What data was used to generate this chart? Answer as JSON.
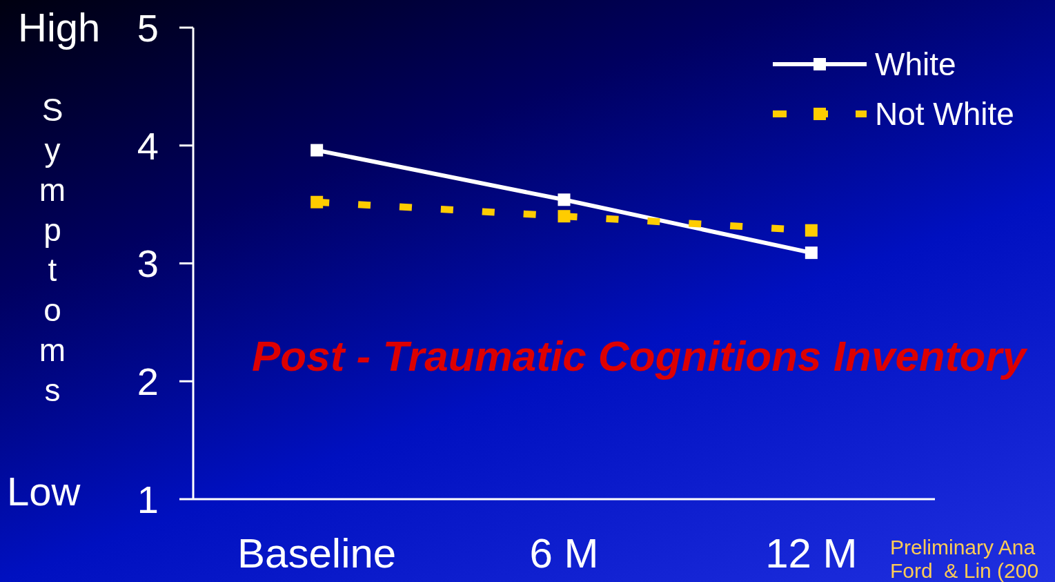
{
  "chart_data": {
    "type": "line",
    "title": "Post - Traumatic Cognitions Inventory",
    "ylabel": "Symptoms",
    "categories": [
      "Baseline",
      "6 M",
      "12 M"
    ],
    "series": [
      {
        "name": "White",
        "color": "#ffffff",
        "values": [
          3.96,
          3.54,
          3.09
        ],
        "line_style": "solid"
      },
      {
        "name": "Not White",
        "color": "#ffcc00",
        "values": [
          3.52,
          3.4,
          3.28
        ],
        "line_style": "dashed"
      }
    ],
    "ylim": [
      1,
      5
    ],
    "yticks": [
      1,
      2,
      3,
      4,
      5
    ],
    "legend": "top right",
    "marker": "square",
    "annotations": [
      "High",
      "Low",
      "Preliminary Ana",
      "Ford  & Lin (200"
    ]
  }
}
